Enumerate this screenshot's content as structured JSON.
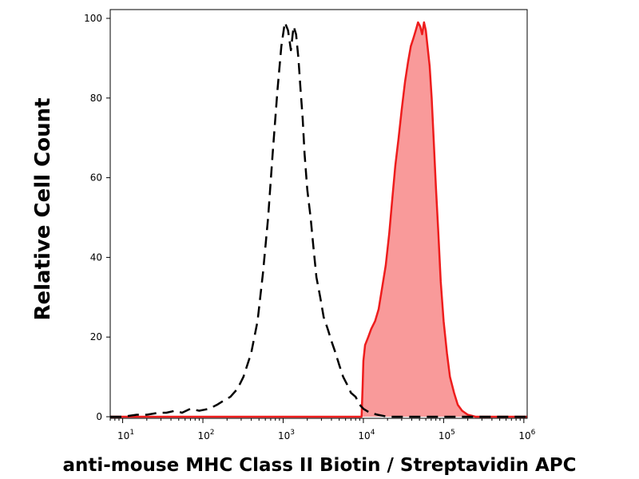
{
  "chart_data": {
    "type": "area",
    "title": "",
    "xlabel": "anti-mouse MHC Class II Biotin / Streptavidin APC",
    "ylabel": "Relative Cell Count",
    "x_scale": "log",
    "xlim": [
      7,
      1100000
    ],
    "ylim": [
      0,
      100
    ],
    "yticks": [
      0,
      20,
      40,
      60,
      80,
      100
    ],
    "xticks": [
      {
        "base": "10",
        "exp": "1",
        "value": 10
      },
      {
        "base": "10",
        "exp": "2",
        "value": 100
      },
      {
        "base": "10",
        "exp": "3",
        "value": 1000
      },
      {
        "base": "10",
        "exp": "4",
        "value": 10000
      },
      {
        "base": "10",
        "exp": "5",
        "value": 100000
      },
      {
        "base": "10",
        "exp": "6",
        "value": 1000000
      }
    ],
    "grid": false,
    "series": [
      {
        "style": "dashed-line",
        "color": "#000000",
        "x": [
          7,
          10,
          15,
          20,
          28,
          35,
          45,
          55,
          70,
          90,
          120,
          150,
          180,
          220,
          270,
          320,
          400,
          480,
          560,
          650,
          740,
          850,
          950,
          1050,
          1150,
          1250,
          1350,
          1450,
          1550,
          1650,
          1750,
          1850,
          2000,
          2200,
          2400,
          2600,
          2900,
          3200,
          3600,
          4000,
          4500,
          5000,
          5600,
          6300,
          7000,
          8000,
          9000,
          10000,
          12000,
          15000,
          20000,
          30000,
          50000,
          100000,
          300000,
          1100000
        ],
        "y": [
          0,
          0,
          0.5,
          0.5,
          1,
          1,
          1.5,
          1,
          2,
          1.5,
          2,
          3,
          4,
          5,
          7,
          10,
          16,
          24,
          36,
          50,
          66,
          82,
          93,
          99,
          97,
          92,
          98,
          96,
          90,
          82,
          75,
          66,
          57,
          50,
          42,
          35,
          30,
          25,
          22,
          19,
          16,
          13,
          10,
          8,
          6,
          5,
          3,
          2,
          1,
          0.5,
          0,
          0,
          0,
          0,
          0,
          0
        ]
      },
      {
        "style": "filled",
        "color": "#ee1c1c",
        "fill": "#f99a9a",
        "x": [
          7,
          9500,
          9800,
          10000,
          10500,
          11500,
          12500,
          14000,
          15500,
          17000,
          19000,
          21000,
          23000,
          25000,
          27500,
          30000,
          33000,
          36000,
          39000,
          42000,
          45000,
          48000,
          51000,
          54000,
          57000,
          60000,
          63000,
          67000,
          71000,
          75000,
          80000,
          86000,
          92000,
          100000,
          110000,
          120000,
          135000,
          150000,
          170000,
          200000,
          250000,
          350000,
          1100000
        ],
        "y": [
          0,
          0,
          8,
          14,
          18,
          20,
          22,
          24,
          27,
          32,
          38,
          46,
          55,
          63,
          70,
          77,
          84,
          89,
          93,
          95,
          97,
          99,
          98,
          96,
          99,
          97,
          93,
          88,
          80,
          70,
          58,
          46,
          34,
          24,
          16,
          10,
          6,
          3,
          1.5,
          0.5,
          0,
          0,
          0
        ]
      }
    ]
  }
}
